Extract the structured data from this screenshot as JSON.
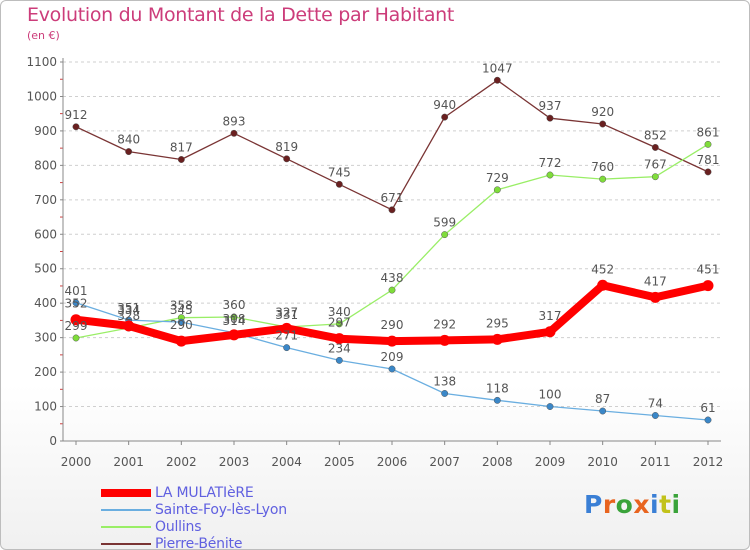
{
  "header": {
    "title": "Evolution du Montant de la Dette par Habitant",
    "unit": "(en €)"
  },
  "brand": {
    "text": "Proxiti",
    "colors": [
      "#3a7fd5",
      "#e8641f",
      "#3aa33a",
      "#e8641f",
      "#3a7fd5",
      "#c2c21a",
      "#3aa33a"
    ]
  },
  "chart_data": {
    "type": "line",
    "title": "Evolution du Montant de la Dette par Habitant",
    "subtitle": "(en €)",
    "xlabel": "",
    "ylabel": "",
    "x": [
      2000,
      2001,
      2002,
      2003,
      2004,
      2005,
      2006,
      2007,
      2008,
      2009,
      2010,
      2011,
      2012
    ],
    "ylim": [
      0,
      1100
    ],
    "yticks": [
      0,
      100,
      200,
      300,
      400,
      500,
      600,
      700,
      800,
      900,
      1000,
      1100
    ],
    "grid": "horizontal dashed",
    "legend_position": "bottom-left",
    "series": [
      {
        "name": "LA MULATIèRE",
        "values": [
          352,
          334,
          290,
          308,
          327,
          297,
          290,
          292,
          295,
          317,
          452,
          417,
          451
        ],
        "labels": [
          "352",
          "334",
          "290",
          "308",
          "327",
          "297",
          "290",
          "292",
          "295",
          "317",
          "452",
          "417",
          "451"
        ],
        "color": "#ff0000"
      },
      {
        "name": "Sainte-Foy-lès-Lyon",
        "values": [
          401,
          351,
          345,
          314,
          271,
          234,
          209,
          138,
          118,
          100,
          87,
          74,
          61
        ],
        "labels": [
          "401",
          "351",
          "345",
          "314",
          "271",
          "234",
          "209",
          "138",
          "118",
          "100",
          "87",
          "74",
          "61"
        ],
        "color": "#6aaee0"
      },
      {
        "name": "Oullins",
        "values": [
          299,
          328,
          358,
          360,
          331,
          340,
          438,
          599,
          729,
          772,
          760,
          767,
          861
        ],
        "labels": [
          "299",
          "328",
          "358",
          "360",
          "331",
          "340",
          "438",
          "599",
          "729",
          "772",
          "760",
          "767",
          "861"
        ],
        "color": "#99ee66"
      },
      {
        "name": "Pierre-Bénite",
        "values": [
          912,
          840,
          817,
          893,
          819,
          745,
          671,
          940,
          1047,
          937,
          920,
          852,
          781
        ],
        "labels": [
          "912",
          "840",
          "817",
          "893",
          "819",
          "745",
          "671",
          "940",
          "1047",
          "937",
          "920",
          "852",
          "781"
        ],
        "color": "#7a3434"
      }
    ]
  }
}
